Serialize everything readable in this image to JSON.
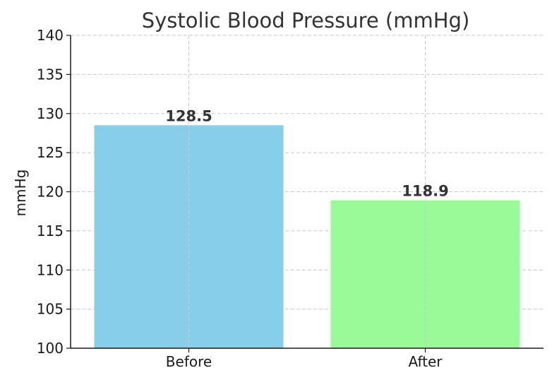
{
  "chart_data": {
    "type": "bar",
    "title": "Systolic Blood Pressure (mmHg)",
    "xlabel": "",
    "ylabel": "mmHg",
    "categories": [
      "Before",
      "After"
    ],
    "values": [
      128.5,
      118.9
    ],
    "value_labels": [
      "128.5",
      "118.9"
    ],
    "colors": [
      "#87ceeb",
      "#98fb98"
    ],
    "ylim": [
      100,
      140
    ],
    "yticks": [
      100,
      105,
      110,
      115,
      120,
      125,
      130,
      135,
      140
    ],
    "grid": true,
    "legend": "none"
  }
}
